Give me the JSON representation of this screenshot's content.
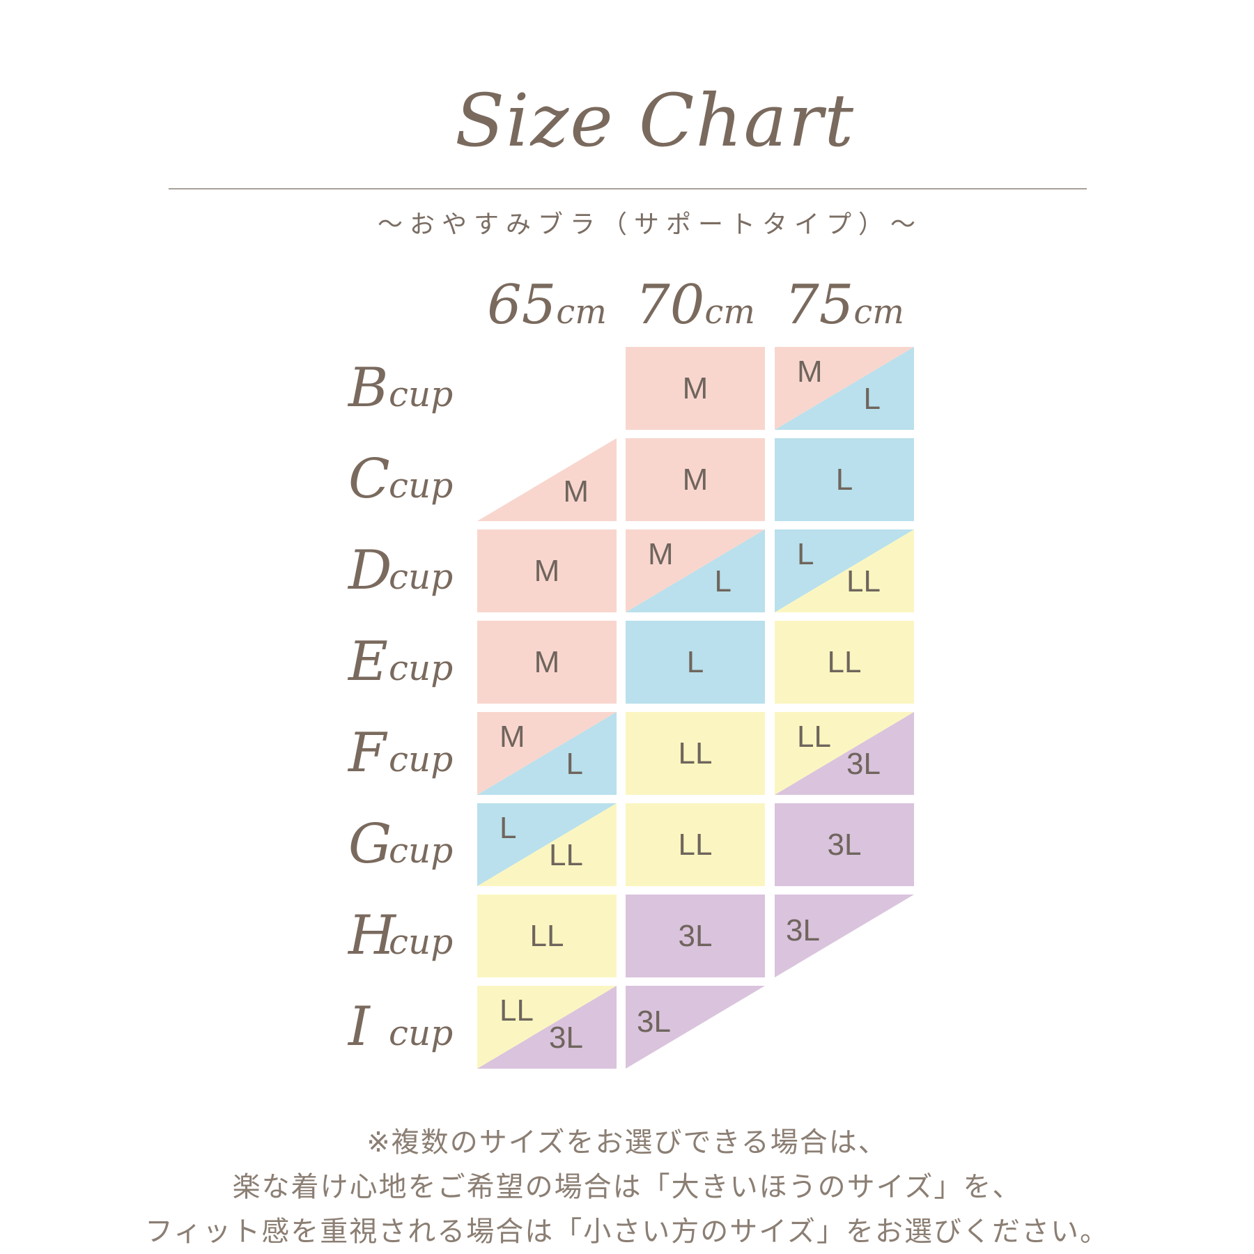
{
  "page": {
    "title": "Size Chart",
    "subtitle": "～おやすみブラ（サポートタイプ）～",
    "footer_lines": [
      "※複数のサイズをお選びできる場合は、",
      "楽な着け心地をご希望の場合は「大きいほうのサイズ」を、",
      "フィット感を重視される場合は「小さい方のサイズ」をお選びください。"
    ]
  },
  "size_colors": {
    "M": "#f8d6ce",
    "L": "#b9e0ec",
    "LL": "#fbf6c1",
    "3L": "#dac3dd"
  },
  "text_colors": {
    "heading_brown": "#7a6a5e",
    "cell_letter": "#6f655d",
    "footer_gray_brown": "#8b7e73",
    "divider": "#a6a09a"
  },
  "table": {
    "column_headers": [
      {
        "value": "65",
        "unit": "cm"
      },
      {
        "value": "70",
        "unit": "cm"
      },
      {
        "value": "75",
        "unit": "cm"
      }
    ],
    "rows": [
      {
        "cup": "B",
        "suffix": "cup",
        "cells": [
          {
            "kind": "empty"
          },
          {
            "kind": "full",
            "a": "M"
          },
          {
            "kind": "split",
            "a": "M",
            "b": "L"
          }
        ]
      },
      {
        "cup": "C",
        "suffix": "cup",
        "cells": [
          {
            "kind": "tri_br",
            "a": "M"
          },
          {
            "kind": "full",
            "a": "M"
          },
          {
            "kind": "full",
            "a": "L"
          }
        ]
      },
      {
        "cup": "D",
        "suffix": "cup",
        "cells": [
          {
            "kind": "full",
            "a": "M"
          },
          {
            "kind": "split",
            "a": "M",
            "b": "L"
          },
          {
            "kind": "split",
            "a": "L",
            "b": "LL"
          }
        ]
      },
      {
        "cup": "E",
        "suffix": "cup",
        "cells": [
          {
            "kind": "full",
            "a": "M"
          },
          {
            "kind": "full",
            "a": "L"
          },
          {
            "kind": "full",
            "a": "LL"
          }
        ]
      },
      {
        "cup": "F",
        "suffix": "cup",
        "cells": [
          {
            "kind": "split",
            "a": "M",
            "b": "L"
          },
          {
            "kind": "full",
            "a": "LL"
          },
          {
            "kind": "split",
            "a": "LL",
            "b": "3L"
          }
        ]
      },
      {
        "cup": "G",
        "suffix": "cup",
        "cells": [
          {
            "kind": "split",
            "a": "L",
            "b": "LL"
          },
          {
            "kind": "full",
            "a": "LL"
          },
          {
            "kind": "full",
            "a": "3L"
          }
        ]
      },
      {
        "cup": "H",
        "suffix": "cup",
        "cells": [
          {
            "kind": "full",
            "a": "LL"
          },
          {
            "kind": "full",
            "a": "3L"
          },
          {
            "kind": "tri_tl",
            "a": "3L"
          }
        ]
      },
      {
        "cup": "I",
        "suffix": "cup",
        "cells": [
          {
            "kind": "split",
            "a": "LL",
            "b": "3L"
          },
          {
            "kind": "tri_tl",
            "a": "3L"
          },
          {
            "kind": "empty"
          }
        ]
      }
    ]
  },
  "chart_data": {
    "type": "table",
    "title": "Size Chart",
    "subtitle": "～おやすみブラ（サポートタイプ）～",
    "x_categories": [
      "65cm",
      "70cm",
      "75cm"
    ],
    "y_categories": [
      "B cup",
      "C cup",
      "D cup",
      "E cup",
      "F cup",
      "G cup",
      "H cup",
      "I cup"
    ],
    "cells": [
      [
        "",
        "M",
        "M / L"
      ],
      [
        "M",
        "M",
        "L"
      ],
      [
        "M",
        "M / L",
        "L / LL"
      ],
      [
        "M",
        "L",
        "LL"
      ],
      [
        "M / L",
        "LL",
        "LL / 3L"
      ],
      [
        "L / LL",
        "LL",
        "3L"
      ],
      [
        "LL",
        "3L",
        "3L"
      ],
      [
        "LL / 3L",
        "3L",
        ""
      ]
    ],
    "legend": {
      "M": "#f8d6ce",
      "L": "#b9e0ec",
      "LL": "#fbf6c1",
      "3L": "#dac3dd"
    },
    "layout_hints": "Split cells are divided by a diagonal running from bottom-left to top-right; first size occupies the top-left triangle, second size the bottom-right triangle. C/65 is a bottom-right half-triangle only; H/75 and I/70 are top-left half-triangles only."
  }
}
